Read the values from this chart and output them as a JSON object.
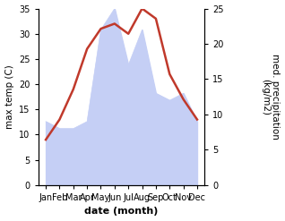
{
  "months": [
    "Jan",
    "Feb",
    "Mar",
    "Apr",
    "May",
    "Jun",
    "Jul",
    "Aug",
    "Sep",
    "Oct",
    "Nov",
    "Dec"
  ],
  "temperature": [
    9,
    13,
    19,
    27,
    31,
    32,
    30,
    35,
    33,
    22,
    17,
    13
  ],
  "precipitation": [
    9,
    8,
    8,
    9,
    22,
    25,
    17,
    22,
    13,
    12,
    13,
    9
  ],
  "temp_color": "#c0392b",
  "precip_fill_color": "#c5cff5",
  "precip_edge_color": "#b0bef0",
  "temp_ylim": [
    0,
    35
  ],
  "precip_ylim": [
    0,
    25
  ],
  "temp_yticks": [
    0,
    5,
    10,
    15,
    20,
    25,
    30,
    35
  ],
  "precip_yticks": [
    0,
    5,
    10,
    15,
    20,
    25
  ],
  "ylabel_left": "max temp (C)",
  "ylabel_right": "med. precipitation\n(kg/m2)",
  "xlabel": "date (month)",
  "bg_color": "#ffffff",
  "temp_linewidth": 1.8,
  "label_fontsize": 7.5,
  "tick_fontsize": 7,
  "xlabel_fontsize": 8
}
